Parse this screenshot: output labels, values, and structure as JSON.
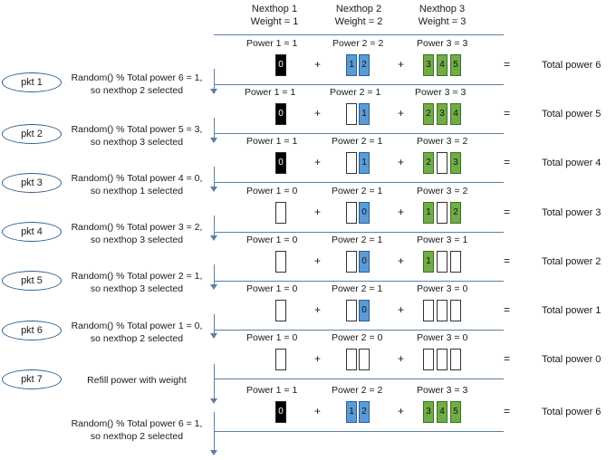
{
  "headers": [
    {
      "line1": "Nexthop 1",
      "line2": "Weight = 1"
    },
    {
      "line1": "Nexthop 2",
      "line2": "Weight = 2"
    },
    {
      "line1": "Nexthop 3",
      "line2": "Weight = 3"
    }
  ],
  "equals": "=",
  "plus": "+",
  "colors": {
    "line": "#5b7fa8",
    "blue": "#5b9bd5",
    "green": "#70ad47",
    "black": "#000000"
  },
  "rows": [
    {
      "labels": [
        "Power 1 = 1",
        "Power 2 = 2",
        "Power 3 = 3"
      ],
      "cells": [
        [
          {
            "t": "0",
            "c": "black"
          }
        ],
        [
          {
            "t": "1",
            "c": "blue"
          },
          {
            "t": "2",
            "c": "blue"
          }
        ],
        [
          {
            "t": "3",
            "c": "green"
          },
          {
            "t": "4",
            "c": "green"
          },
          {
            "t": "5",
            "c": "green"
          }
        ]
      ],
      "total": "Total power 6"
    },
    {
      "labels": [
        "Power 1 = 1",
        "Power 2 = 1",
        "Power 3 = 3"
      ],
      "cells": [
        [
          {
            "t": "0",
            "c": "black"
          }
        ],
        [
          {
            "t": "",
            "c": "empty"
          },
          {
            "t": "1",
            "c": "blue"
          }
        ],
        [
          {
            "t": "2",
            "c": "green"
          },
          {
            "t": "3",
            "c": "green"
          },
          {
            "t": "4",
            "c": "green"
          }
        ]
      ],
      "total": "Total power 5"
    },
    {
      "labels": [
        "Power 1 = 1",
        "Power 2 = 1",
        "Power 3 = 2"
      ],
      "cells": [
        [
          {
            "t": "0",
            "c": "black"
          }
        ],
        [
          {
            "t": "",
            "c": "empty"
          },
          {
            "t": "1",
            "c": "blue"
          }
        ],
        [
          {
            "t": "2",
            "c": "green"
          },
          {
            "t": "",
            "c": "empty"
          },
          {
            "t": "3",
            "c": "green"
          }
        ]
      ],
      "total": "Total power 4"
    },
    {
      "labels": [
        "Power 1 = 0",
        "Power 2 = 1",
        "Power 3 = 2"
      ],
      "cells": [
        [
          {
            "t": "",
            "c": "empty"
          }
        ],
        [
          {
            "t": "",
            "c": "empty"
          },
          {
            "t": "0",
            "c": "blue"
          }
        ],
        [
          {
            "t": "1",
            "c": "green"
          },
          {
            "t": "",
            "c": "empty"
          },
          {
            "t": "2",
            "c": "green"
          }
        ]
      ],
      "total": "Total power 3"
    },
    {
      "labels": [
        "Power 1 = 0",
        "Power 2 = 1",
        "Power 3 = 1"
      ],
      "cells": [
        [
          {
            "t": "",
            "c": "empty"
          }
        ],
        [
          {
            "t": "",
            "c": "empty"
          },
          {
            "t": "0",
            "c": "blue"
          }
        ],
        [
          {
            "t": "1",
            "c": "green"
          },
          {
            "t": "",
            "c": "empty"
          },
          {
            "t": "",
            "c": "empty"
          }
        ]
      ],
      "total": "Total power 2"
    },
    {
      "labels": [
        "Power 1 = 0",
        "Power 2 = 1",
        "Power 3 = 0"
      ],
      "cells": [
        [
          {
            "t": "",
            "c": "empty"
          }
        ],
        [
          {
            "t": "",
            "c": "empty"
          },
          {
            "t": "0",
            "c": "blue"
          }
        ],
        [
          {
            "t": "",
            "c": "empty"
          },
          {
            "t": "",
            "c": "empty"
          },
          {
            "t": "",
            "c": "empty"
          }
        ]
      ],
      "total": "Total power 1"
    },
    {
      "labels": [
        "Power 1 = 0",
        "Power 2 = 0",
        "Power 3 = 0"
      ],
      "cells": [
        [
          {
            "t": "",
            "c": "empty"
          }
        ],
        [
          {
            "t": "",
            "c": "empty"
          },
          {
            "t": "",
            "c": "empty"
          }
        ],
        [
          {
            "t": "",
            "c": "empty"
          },
          {
            "t": "",
            "c": "empty"
          },
          {
            "t": "",
            "c": "empty"
          }
        ]
      ],
      "total": "Total power 0"
    },
    {
      "labels": [
        "Power 1 = 1",
        "Power 2 = 2",
        "Power 3 = 3"
      ],
      "cells": [
        [
          {
            "t": "0",
            "c": "black"
          }
        ],
        [
          {
            "t": "1",
            "c": "blue"
          },
          {
            "t": "2",
            "c": "blue"
          }
        ],
        [
          {
            "t": "3",
            "c": "green"
          },
          {
            "t": "4",
            "c": "green"
          },
          {
            "t": "5",
            "c": "green"
          }
        ]
      ],
      "total": "Total power 6"
    }
  ],
  "packets": [
    {
      "name": "pkt 1",
      "desc1": "Random() % Total power 6 = 1,",
      "desc2": "so nexthop 2 selected"
    },
    {
      "name": "pkt 2",
      "desc1": "Random() % Total power 5 = 3,",
      "desc2": "so nexthop 3 selected"
    },
    {
      "name": "pkt 3",
      "desc1": "Random() % Total power 4 = 0,",
      "desc2": "so nexthop 1 selected"
    },
    {
      "name": "pkt 4",
      "desc1": "Random() % Total power 3 = 2,",
      "desc2": "so nexthop 3 selected"
    },
    {
      "name": "pkt 5",
      "desc1": "Random() % Total power 2 = 1,",
      "desc2": "so nexthop 3 selected"
    },
    {
      "name": "pkt 6",
      "desc1": "Random() % Total power 1 = 0,",
      "desc2": "so nexthop 2 selected"
    },
    {
      "name": "pkt 7",
      "desc1": "Refill power with weight",
      "desc2": ""
    },
    {
      "name": "",
      "desc1": "Random() % Total power 6 = 1,",
      "desc2": "so nexthop 2 selected"
    }
  ]
}
